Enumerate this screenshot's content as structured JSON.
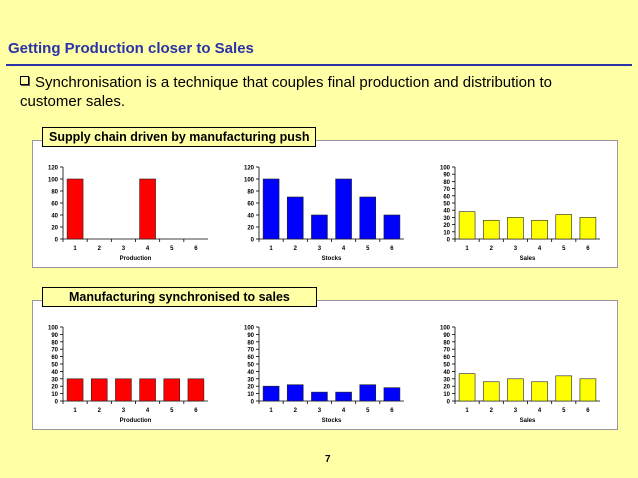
{
  "slide": {
    "title": "Getting Production closer to Sales",
    "bullet": "Synchronisation is a technique that couples final production and distribution to customer sales.",
    "page_number": "7"
  },
  "panels": [
    {
      "label": "Supply chain driven by manufacturing push"
    },
    {
      "label": "Manufacturing synchronised to sales"
    }
  ],
  "chart_data": [
    {
      "type": "bar",
      "xlabel": "Production",
      "categories": [
        "1",
        "2",
        "3",
        "4",
        "5",
        "6"
      ],
      "values": [
        100,
        0,
        0,
        100,
        0,
        0
      ],
      "ylim": [
        0,
        120
      ],
      "yticks": [
        0,
        20,
        40,
        60,
        80,
        100,
        120
      ],
      "color": "#ff0000"
    },
    {
      "type": "bar",
      "xlabel": "Stocks",
      "categories": [
        "1",
        "2",
        "3",
        "4",
        "5",
        "6"
      ],
      "values": [
        100,
        70,
        40,
        100,
        70,
        40
      ],
      "ylim": [
        0,
        120
      ],
      "yticks": [
        0,
        20,
        40,
        60,
        80,
        100,
        120
      ],
      "color": "#0000ff"
    },
    {
      "type": "bar",
      "xlabel": "Sales",
      "categories": [
        "1",
        "2",
        "3",
        "4",
        "5",
        "6"
      ],
      "values": [
        38,
        26,
        30,
        26,
        34,
        30
      ],
      "ylim": [
        0,
        100
      ],
      "yticks": [
        0,
        10,
        20,
        30,
        40,
        50,
        60,
        70,
        80,
        90,
        100
      ],
      "color": "#ffff00"
    },
    {
      "type": "bar",
      "xlabel": "Production",
      "categories": [
        "1",
        "2",
        "3",
        "4",
        "5",
        "6"
      ],
      "values": [
        30,
        30,
        30,
        30,
        30,
        30
      ],
      "ylim": [
        0,
        100
      ],
      "yticks": [
        0,
        10,
        20,
        30,
        40,
        50,
        60,
        70,
        80,
        90,
        100
      ],
      "color": "#ff0000"
    },
    {
      "type": "bar",
      "xlabel": "Stocks",
      "categories": [
        "1",
        "2",
        "3",
        "4",
        "5",
        "6"
      ],
      "values": [
        20,
        22,
        12,
        12,
        22,
        18
      ],
      "ylim": [
        0,
        100
      ],
      "yticks": [
        0,
        10,
        20,
        30,
        40,
        50,
        60,
        70,
        80,
        90,
        100
      ],
      "color": "#0000ff"
    },
    {
      "type": "bar",
      "xlabel": "Sales",
      "categories": [
        "1",
        "2",
        "3",
        "4",
        "5",
        "6"
      ],
      "values": [
        37,
        26,
        30,
        26,
        34,
        30
      ],
      "ylim": [
        0,
        100
      ],
      "yticks": [
        0,
        10,
        20,
        30,
        40,
        50,
        60,
        70,
        80,
        90,
        100
      ],
      "color": "#ffff00"
    }
  ]
}
